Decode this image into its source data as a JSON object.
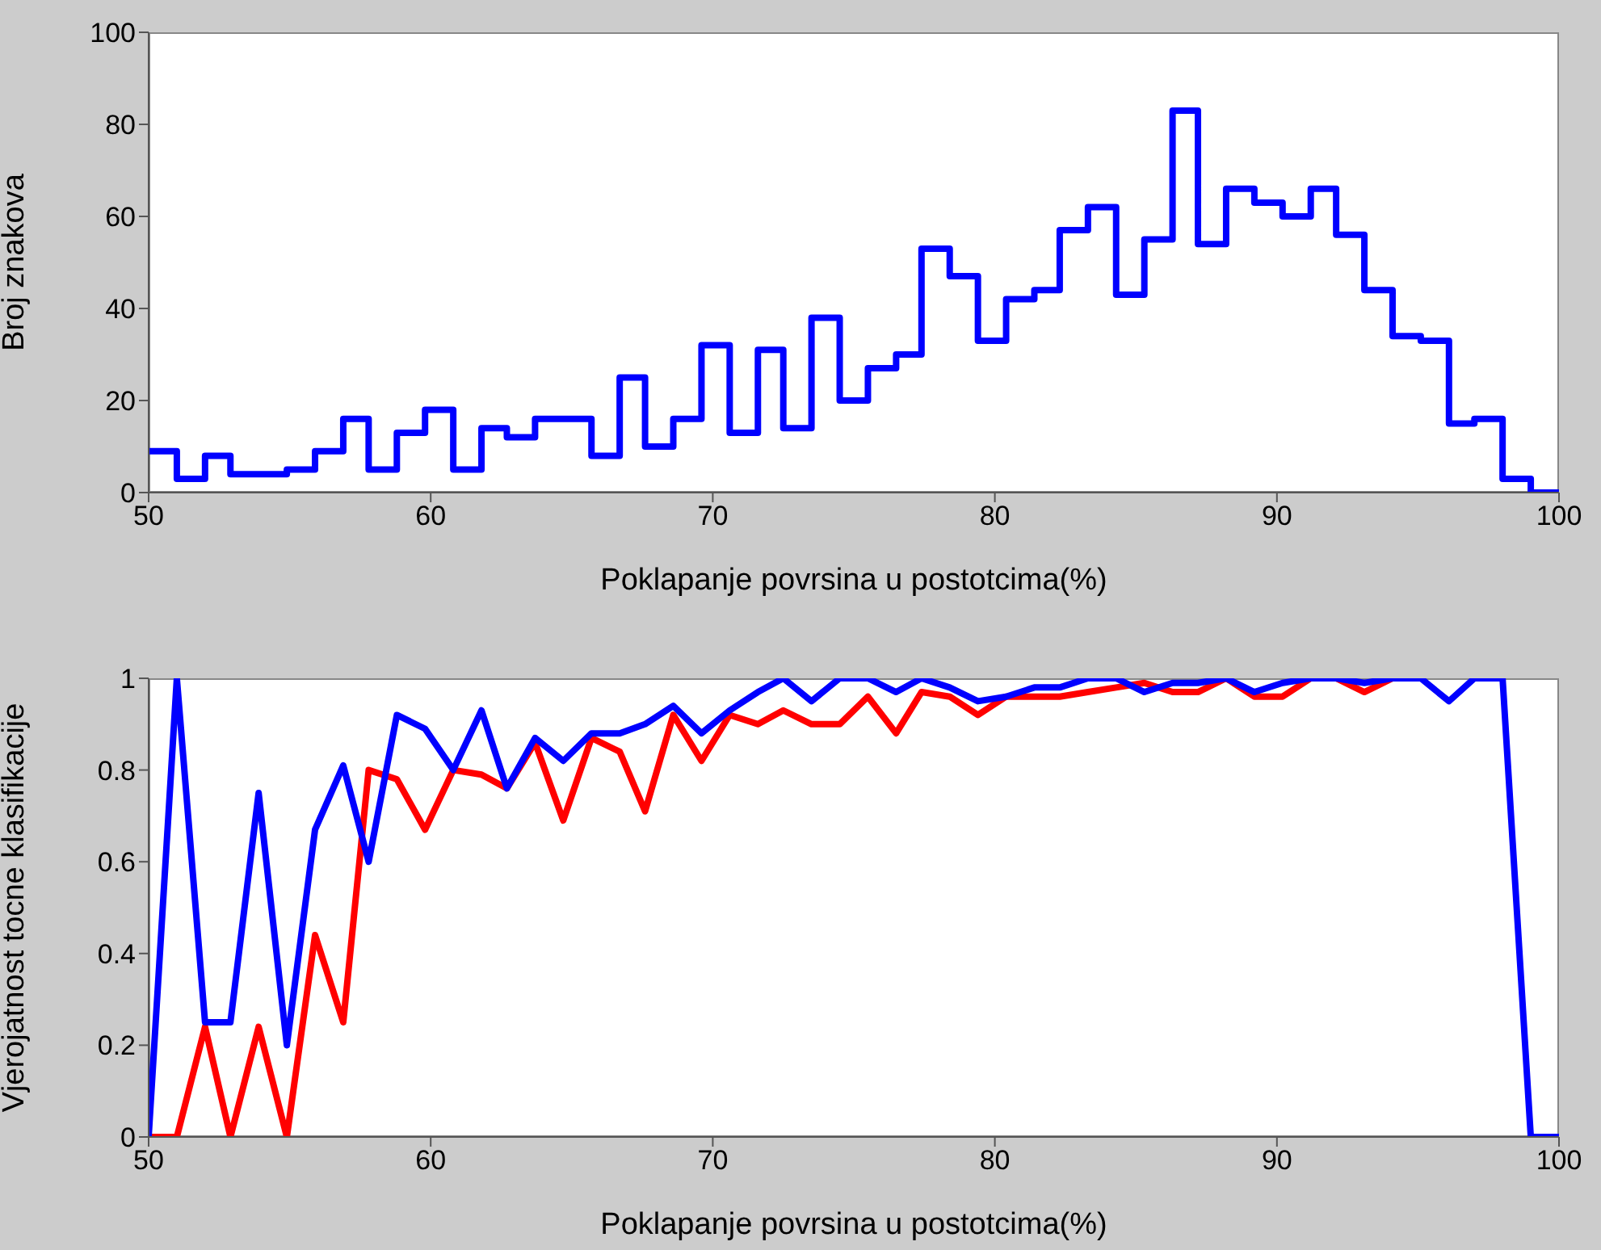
{
  "chart_data": [
    {
      "type": "histogram",
      "xlabel": "Poklapanje povrsina u postotcima(%)",
      "ylabel": "Broj znakova",
      "color": "#0000ff",
      "bins": [
        50,
        51.0,
        52.0,
        52.9,
        53.9,
        54.9,
        55.9,
        56.9,
        57.8,
        58.8,
        59.8,
        60.8,
        61.8,
        62.7,
        63.7,
        64.7,
        65.7,
        66.7,
        67.6,
        68.6,
        69.6,
        70.6,
        71.6,
        72.5,
        73.5,
        74.5,
        75.5,
        76.5,
        77.4,
        78.4,
        79.4,
        80.4,
        81.4,
        82.3,
        83.3,
        84.3,
        85.3,
        86.3,
        87.2,
        88.2,
        89.2,
        90.2,
        91.2,
        92.1,
        93.1,
        94.1,
        95.1,
        96.1,
        97.0,
        98.0,
        99,
        100
      ],
      "values": [
        9,
        3,
        8,
        4,
        4,
        5,
        9,
        16,
        5,
        13,
        18,
        5,
        14,
        12,
        16,
        16,
        8,
        25,
        10,
        16,
        32,
        13,
        31,
        14,
        38,
        20,
        27,
        30,
        53,
        47,
        33,
        42,
        44,
        57,
        62,
        43,
        55,
        83,
        54,
        66,
        63,
        60,
        66,
        56,
        44,
        34,
        33,
        15,
        16,
        3,
        0
      ],
      "xlim": [
        50,
        100
      ],
      "xticks": [
        50,
        60,
        70,
        80,
        90,
        100
      ],
      "ylim": [
        0,
        100
      ],
      "yticks": [
        0,
        20,
        40,
        60,
        80,
        100
      ],
      "grid": false
    },
    {
      "type": "line",
      "xlabel": "Poklapanje povrsina u postotcima(%)",
      "ylabel": "Vjerojatnost tocne klasifikacije",
      "x": [
        50,
        51.0,
        52.0,
        52.9,
        53.9,
        54.9,
        55.9,
        56.9,
        57.8,
        58.8,
        59.8,
        60.8,
        61.8,
        62.7,
        63.7,
        64.7,
        65.7,
        66.7,
        67.6,
        68.6,
        69.6,
        70.6,
        71.6,
        72.5,
        73.5,
        74.5,
        75.5,
        76.5,
        77.4,
        78.4,
        79.4,
        80.4,
        81.4,
        82.3,
        83.3,
        84.3,
        85.3,
        86.3,
        87.2,
        88.2,
        89.2,
        90.2,
        91.2,
        92.1,
        93.1,
        94.1,
        95.1,
        96.1,
        97.0,
        98.0,
        99,
        100
      ],
      "series": [
        {
          "color": "#ff0000",
          "values": [
            0,
            0,
            0.24,
            0,
            0.24,
            0,
            0.44,
            0.25,
            0.8,
            0.78,
            0.67,
            0.8,
            0.79,
            0.76,
            0.86,
            0.69,
            0.87,
            0.84,
            0.71,
            0.92,
            0.82,
            0.92,
            0.9,
            0.93,
            0.9,
            0.9,
            0.96,
            0.88,
            0.97,
            0.96,
            0.92,
            0.96,
            0.96,
            0.96,
            0.97,
            0.98,
            0.99,
            0.97,
            0.97,
            1,
            0.96,
            0.96,
            1,
            1,
            0.97,
            1,
            null,
            null,
            null,
            null,
            null,
            null
          ]
        },
        {
          "color": "#0000ff",
          "values": [
            0,
            1,
            0.25,
            0.25,
            0.75,
            0.2,
            0.67,
            0.81,
            0.6,
            0.92,
            0.89,
            0.8,
            0.93,
            0.76,
            0.87,
            0.82,
            0.88,
            0.88,
            0.9,
            0.94,
            0.88,
            0.93,
            0.97,
            1,
            0.95,
            1,
            1,
            0.97,
            1,
            0.98,
            0.95,
            0.96,
            0.98,
            0.98,
            1,
            1,
            0.97,
            0.99,
            0.99,
            1,
            0.97,
            0.99,
            1,
            1,
            0.99,
            1,
            1,
            0.95,
            1,
            1,
            0,
            0
          ]
        }
      ],
      "xlim": [
        50,
        100
      ],
      "xticks": [
        50,
        60,
        70,
        80,
        90,
        100
      ],
      "ylim": [
        0,
        1
      ],
      "yticks": [
        0,
        0.2,
        0.4,
        0.6,
        0.8,
        1
      ],
      "grid": false
    }
  ]
}
